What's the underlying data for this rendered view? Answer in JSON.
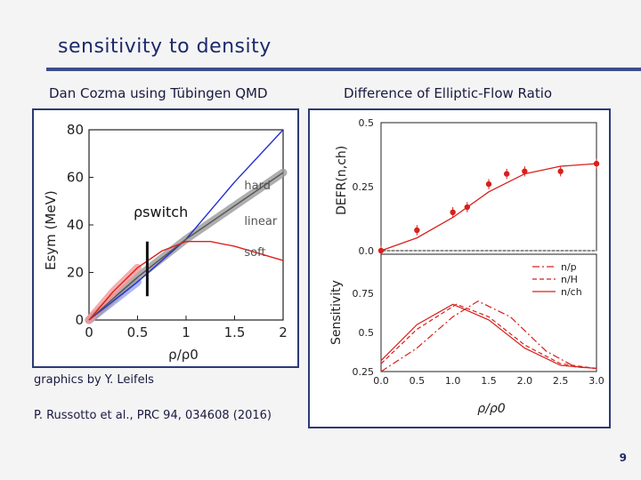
{
  "slide": {
    "title": "sensitivity to density",
    "left_subtitle": "Dan Cozma using Tübingen QMD",
    "right_subtitle": "Difference of Elliptic-Flow Ratio",
    "graphics_credit": "graphics by Y. Leifels",
    "reference": "P. Russotto et al., PRC 94, 034608 (2016)",
    "page_number": "9",
    "colors": {
      "accent": "#2c3a75",
      "red": "#e0201c",
      "blue": "#2230d0"
    }
  },
  "chart_data": [
    {
      "type": "line",
      "title": "",
      "xlabel": "ρ/ρ0",
      "ylabel": "Esym (MeV)",
      "xlim": [
        0,
        2
      ],
      "ylim": [
        0,
        80
      ],
      "xticks": [
        "0",
        "0.5",
        "1",
        "1.5",
        "2"
      ],
      "yticks": [
        "0",
        "20",
        "40",
        "60",
        "80"
      ],
      "annotation": "ρswitch",
      "switch_x": 0.6,
      "series": [
        {
          "name": "hard",
          "color": "#2230d0",
          "points": [
            [
              0,
              0
            ],
            [
              0.5,
              16
            ],
            [
              1,
              34
            ],
            [
              1.5,
              58
            ],
            [
              2,
              80
            ]
          ]
        },
        {
          "name": "linear",
          "color": "#555555",
          "points": [
            [
              0,
              0
            ],
            [
              0.5,
              18
            ],
            [
              1,
              34
            ],
            [
              1.5,
              48
            ],
            [
              2,
              62
            ]
          ]
        },
        {
          "name": "soft",
          "color": "#e0201c",
          "points": [
            [
              0,
              0
            ],
            [
              0.25,
              12
            ],
            [
              0.5,
              22
            ],
            [
              0.75,
              29
            ],
            [
              1,
              33
            ],
            [
              1.25,
              33
            ],
            [
              1.5,
              31
            ],
            [
              1.75,
              28
            ],
            [
              2,
              25
            ]
          ]
        }
      ]
    },
    {
      "type": "scatter",
      "title": "",
      "xlabel": "",
      "ylabel": "DEFR(n,ch)",
      "xlim": [
        0,
        3
      ],
      "ylim": [
        0,
        0.5
      ],
      "yticks": [
        "0.0",
        "0.25",
        "0.5"
      ],
      "points": [
        [
          0,
          0
        ],
        [
          0.5,
          0.08
        ],
        [
          1,
          0.15
        ],
        [
          1.2,
          0.17
        ],
        [
          1.5,
          0.26
        ],
        [
          1.75,
          0.3
        ],
        [
          2,
          0.31
        ],
        [
          2.5,
          0.31
        ],
        [
          3,
          0.34
        ]
      ],
      "fit": [
        [
          0,
          0
        ],
        [
          0.5,
          0.05
        ],
        [
          1,
          0.13
        ],
        [
          1.5,
          0.23
        ],
        [
          2,
          0.3
        ],
        [
          2.5,
          0.33
        ],
        [
          3,
          0.34
        ]
      ]
    },
    {
      "type": "line",
      "title": "",
      "xlabel": "ρ/ρ0",
      "ylabel": "Sensitivity",
      "xlim": [
        0,
        3
      ],
      "ylim": [
        0.25,
        1.0
      ],
      "xticks": [
        "0.0",
        "0.5",
        "1.0",
        "1.5",
        "2.0",
        "2.5",
        "3.0"
      ],
      "yticks": [
        "0.25",
        "0.5",
        "0.75"
      ],
      "legend": [
        "n/p",
        "n/H",
        "n/ch"
      ],
      "series": [
        {
          "name": "n/p",
          "style": "dashdot",
          "points": [
            [
              0,
              0.25
            ],
            [
              0.5,
              0.4
            ],
            [
              1,
              0.6
            ],
            [
              1.35,
              0.7
            ],
            [
              1.8,
              0.6
            ],
            [
              2.3,
              0.38
            ],
            [
              2.7,
              0.28
            ],
            [
              3,
              0.27
            ]
          ]
        },
        {
          "name": "n/H",
          "style": "dashed",
          "points": [
            [
              0,
              0.3
            ],
            [
              0.5,
              0.52
            ],
            [
              1.05,
              0.68
            ],
            [
              1.5,
              0.6
            ],
            [
              2,
              0.42
            ],
            [
              2.5,
              0.3
            ],
            [
              3,
              0.27
            ]
          ]
        },
        {
          "name": "n/ch",
          "style": "solid",
          "points": [
            [
              0,
              0.32
            ],
            [
              0.5,
              0.55
            ],
            [
              1,
              0.68
            ],
            [
              1.5,
              0.58
            ],
            [
              2,
              0.4
            ],
            [
              2.5,
              0.29
            ],
            [
              3,
              0.27
            ]
          ]
        }
      ]
    }
  ]
}
